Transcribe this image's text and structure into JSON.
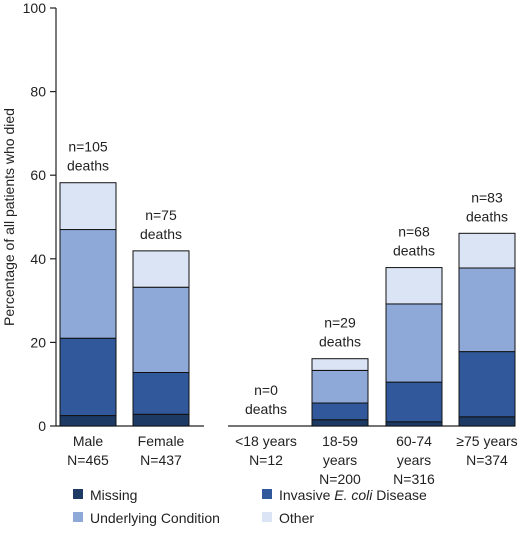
{
  "chart_data": {
    "type": "bar",
    "stacked": true,
    "ylabel": "Percentage of all patients who died",
    "ylim": [
      0,
      100
    ],
    "yticks": [
      0,
      20,
      40,
      60,
      80,
      100
    ],
    "grid": false,
    "legend_position": "bottom",
    "categories": [
      {
        "label_lines": [
          "Male",
          "N=465"
        ],
        "annotation_lines": [
          "n=105",
          "deaths"
        ]
      },
      {
        "label_lines": [
          "Female",
          "N=437"
        ],
        "annotation_lines": [
          "n=75",
          "deaths"
        ]
      },
      {
        "label_lines": [
          "<18 years",
          "N=12"
        ],
        "annotation_lines": [
          "n=0",
          "deaths"
        ]
      },
      {
        "label_lines": [
          "18-59",
          "years",
          "N=200"
        ],
        "annotation_lines": [
          "n=29",
          "deaths"
        ]
      },
      {
        "label_lines": [
          "60-74",
          "years",
          "N=316"
        ],
        "annotation_lines": [
          "n=68",
          "deaths"
        ]
      },
      {
        "label_lines": [
          "≥75 years",
          "N=374"
        ],
        "annotation_lines": [
          "n=83",
          "deaths"
        ]
      }
    ],
    "series": [
      {
        "name": "Missing",
        "color": "#1c3a64",
        "values": [
          2.5,
          2.8,
          0,
          1.5,
          1.0,
          2.2
        ]
      },
      {
        "name": "Invasive E. coli Disease",
        "name_parts": [
          "Invasive ",
          "E. coli",
          " Disease"
        ],
        "color": "#30589b",
        "values": [
          18.5,
          10.0,
          0,
          4.0,
          9.5,
          15.6
        ]
      },
      {
        "name": "Underlying Condition",
        "color": "#8ea9d8",
        "values": [
          26.0,
          20.4,
          0,
          7.8,
          18.7,
          20.0
        ]
      },
      {
        "name": "Other",
        "color": "#dbe4f4",
        "values": [
          11.2,
          8.7,
          0,
          2.8,
          8.7,
          8.3
        ]
      }
    ]
  }
}
